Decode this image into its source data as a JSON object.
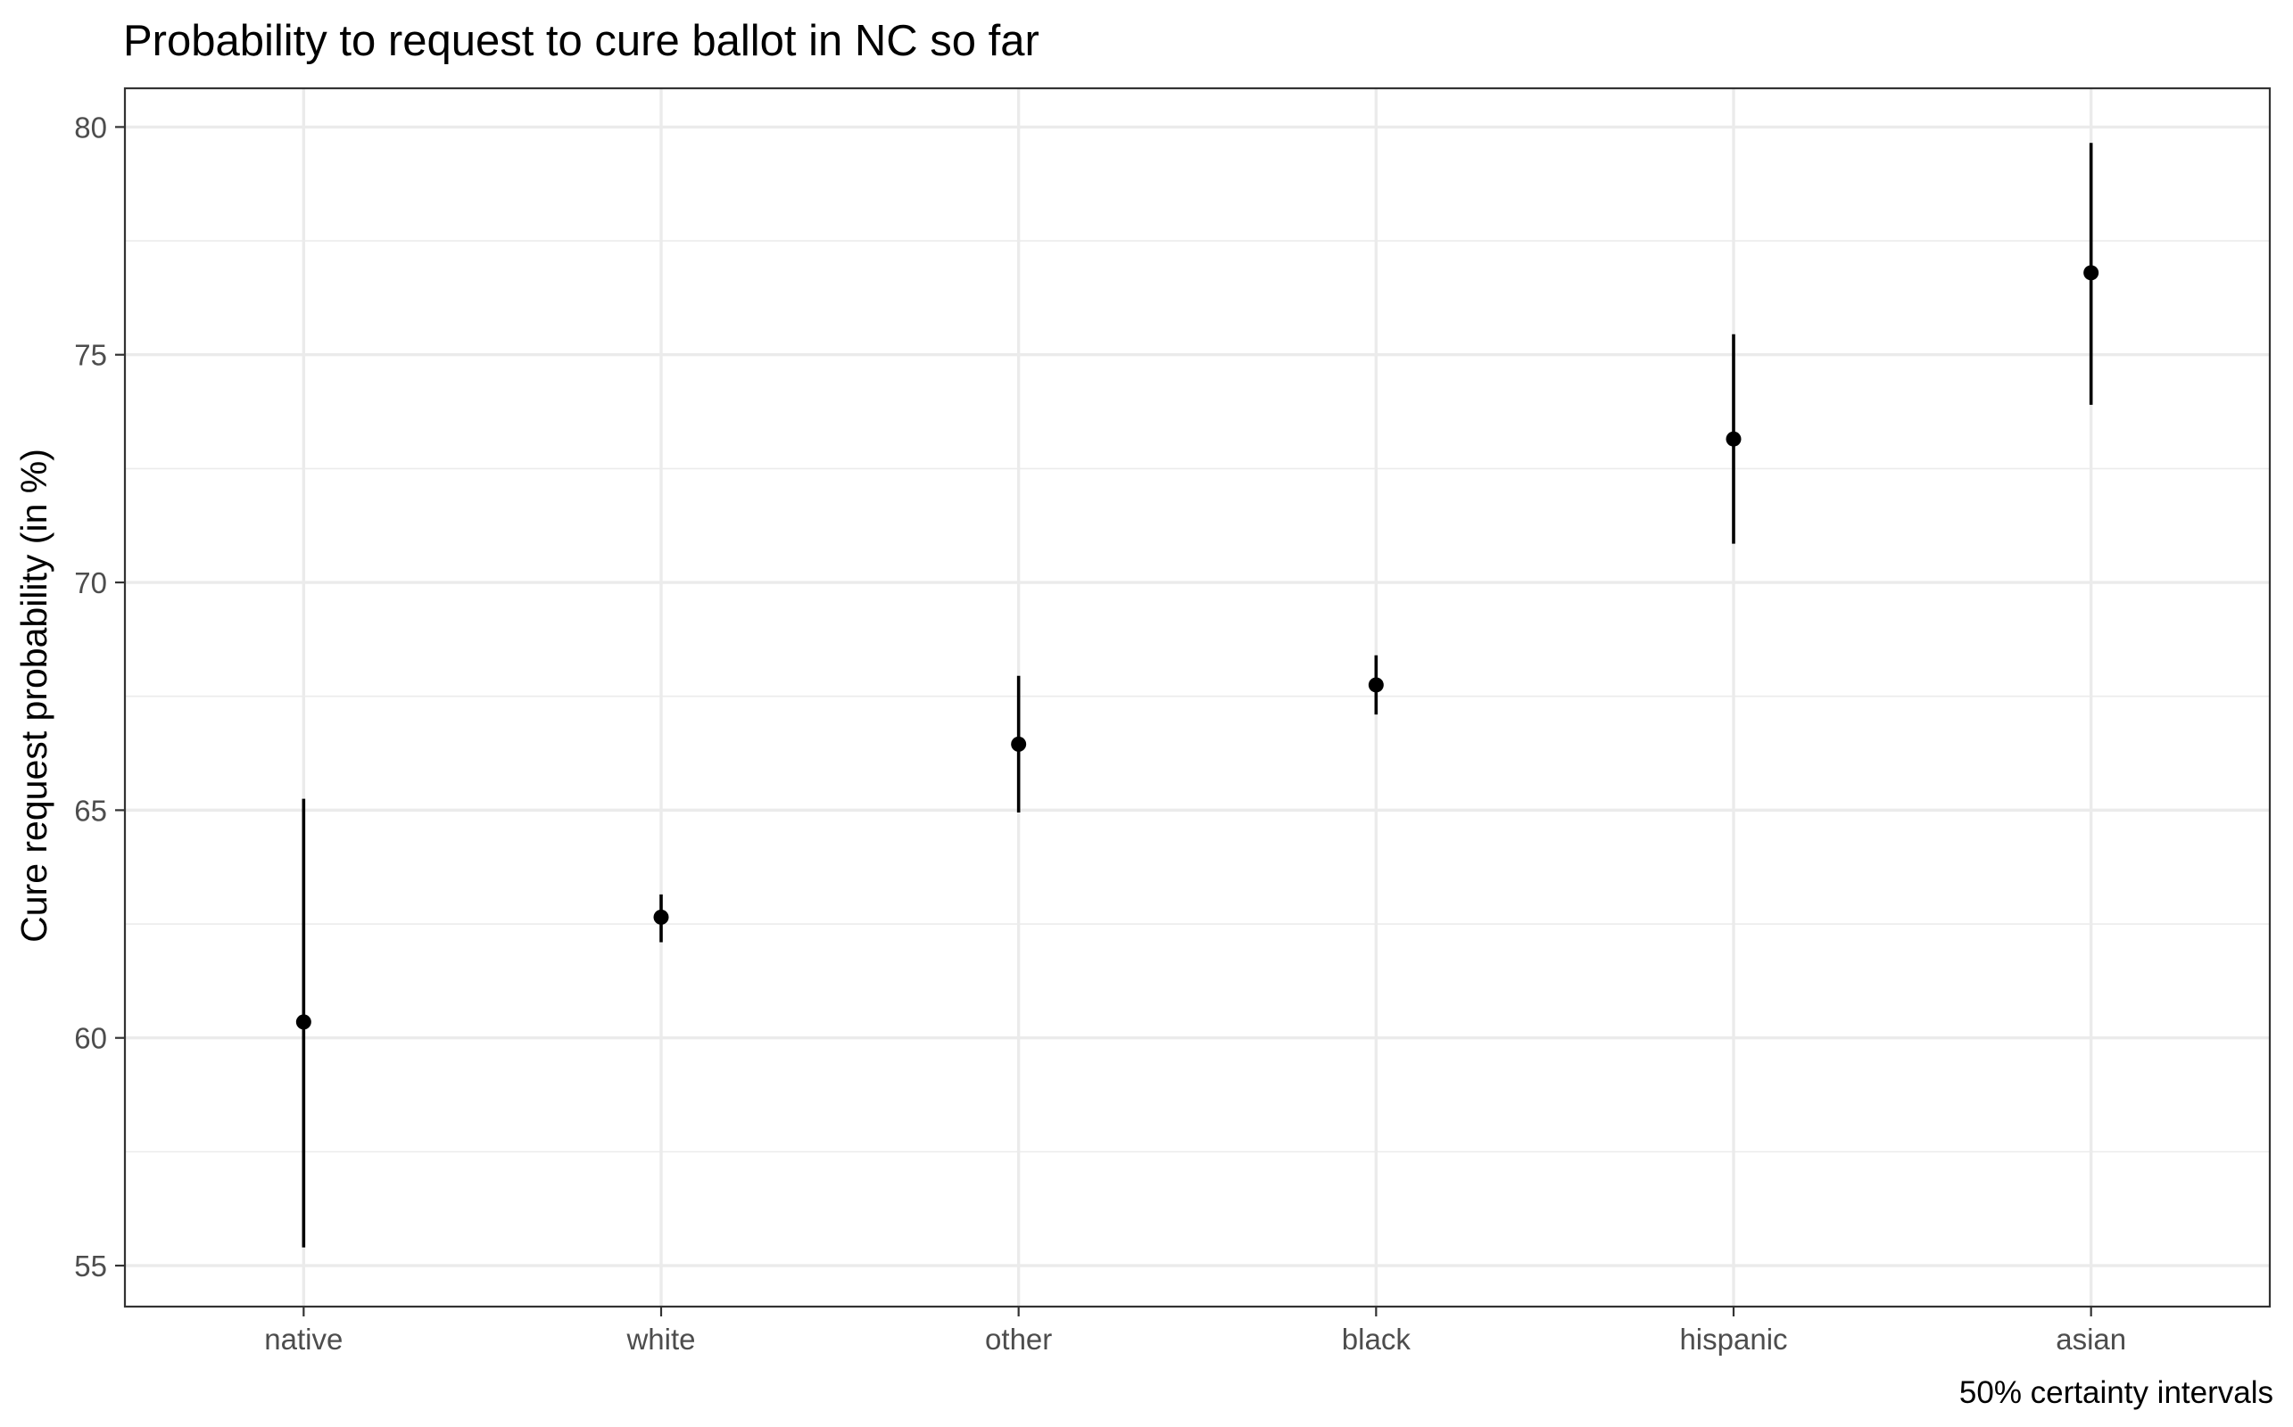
{
  "chart_data": {
    "type": "scatter",
    "subtype": "pointrange",
    "title": "Probability to request to cure ballot in NC so far",
    "ylabel": "Cure request probability (in %)",
    "xlabel": "",
    "caption": "50% certainty intervals",
    "categories": [
      "native",
      "white",
      "other",
      "black",
      "hispanic",
      "asian"
    ],
    "values": [
      60.35,
      62.65,
      66.45,
      67.75,
      73.15,
      76.8
    ],
    "lower": [
      55.4,
      62.1,
      64.95,
      67.1,
      70.85,
      73.9
    ],
    "upper": [
      65.25,
      63.15,
      67.95,
      68.4,
      75.45,
      79.65
    ],
    "yticks": [
      55,
      60,
      65,
      70,
      75,
      80
    ],
    "ylim": [
      54.1,
      80.85
    ],
    "grid": true,
    "colors": {
      "point": "#000000",
      "grid": "#ebebeb",
      "panel_border": "#333333",
      "tick_label": "#4d4d4d",
      "background": "#ffffff"
    }
  }
}
